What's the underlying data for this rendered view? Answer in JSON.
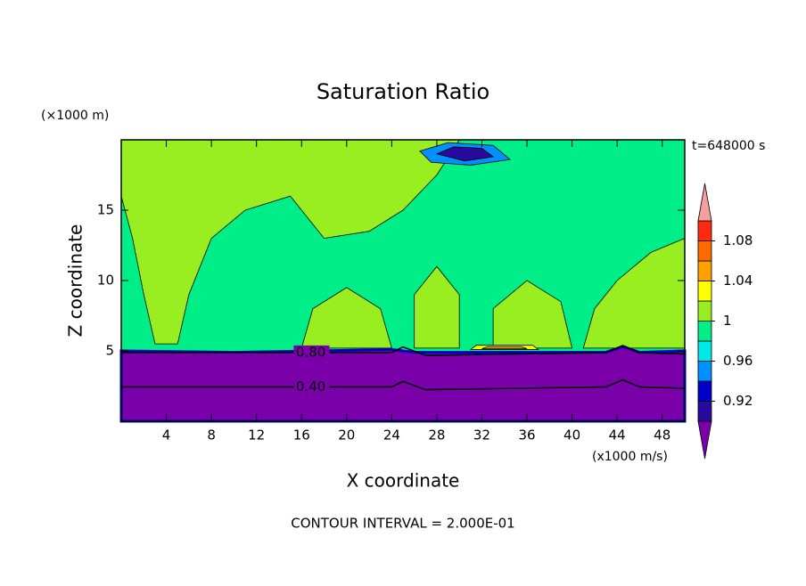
{
  "chart_data": {
    "type": "contour",
    "title": "Saturation Ratio",
    "xlabel": "X coordinate",
    "ylabel": "Z coordinate",
    "x_unit": "(x1000 m/s)",
    "y_unit": "(×1000 m)",
    "time_label": "t=648000 s",
    "footer": "CONTOUR INTERVAL = 2.000E-01",
    "xlim": [
      0,
      50
    ],
    "ylim": [
      0,
      20
    ],
    "xticks": [
      4,
      8,
      12,
      16,
      20,
      24,
      28,
      32,
      36,
      40,
      44,
      48
    ],
    "yticks": [
      5,
      10,
      15
    ],
    "contour_labels": [
      {
        "value": 0.8,
        "label": "0.80"
      },
      {
        "value": 0.4,
        "label": "0.40"
      }
    ],
    "colorbar": {
      "levels": [
        0.9,
        0.92,
        0.94,
        0.96,
        0.98,
        1.0,
        1.02,
        1.04,
        1.06,
        1.08,
        1.1
      ],
      "colors": [
        "#7a00aa",
        "#2a0a9c",
        "#0000c8",
        "#0090ff",
        "#00e8e8",
        "#00ee88",
        "#99ee22",
        "#ffff00",
        "#ffa000",
        "#ff6a00",
        "#ff2a10",
        "#f5a0a0"
      ],
      "ticks": [
        0.92,
        0.96,
        1,
        1.04,
        1.08
      ]
    }
  }
}
